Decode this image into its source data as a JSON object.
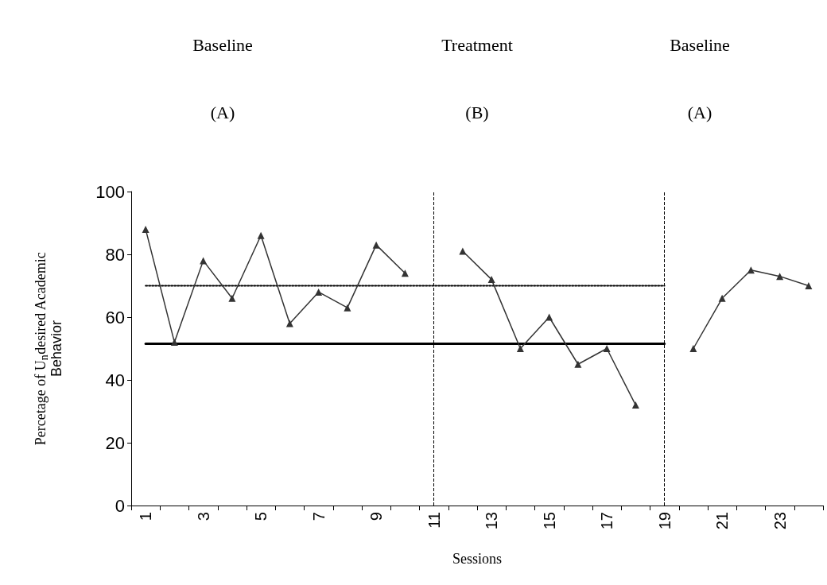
{
  "chart_data": {
    "type": "line",
    "xlabel": "Sessions",
    "ylabel": "Percetage of U$_{n}$desired Academic Behavior",
    "categories": [
      "1",
      null,
      "3",
      null,
      "5",
      null,
      "7",
      null,
      "9",
      null,
      "11",
      null,
      "13",
      null,
      "15",
      null,
      "17",
      null,
      "19",
      null,
      "21",
      null,
      "23",
      null
    ],
    "series": [
      {
        "color": "#333333",
        "marker": "triangle",
        "line_style": "solid",
        "values": [
          88,
          52,
          78,
          66,
          86,
          58,
          68,
          63,
          83,
          74,
          null,
          81,
          72,
          50,
          60,
          45,
          50,
          32,
          null,
          50,
          66,
          75,
          73,
          70
        ]
      },
      {
        "type": "line",
        "color": "#000000",
        "marker": "none",
        "line_style": "dotted",
        "values": [
          70,
          70,
          70,
          70,
          70,
          70,
          70,
          70,
          70,
          70,
          70,
          70,
          70,
          70,
          70,
          70,
          70,
          70,
          70,
          null,
          null,
          null,
          null,
          null
        ]
      },
      {
        "type": "line",
        "color": "#000000",
        "marker": "none",
        "line_style": "solid",
        "values": [
          51.5,
          51.5,
          51.5,
          51.5,
          51.5,
          51.5,
          51.5,
          51.5,
          51.5,
          51.5,
          51.5,
          51.5,
          51.5,
          51.5,
          51.5,
          51.5,
          51.5,
          51.5,
          51.5,
          null,
          null,
          null,
          null,
          null
        ]
      }
    ],
    "ylim": [
      0,
      100
    ],
    "yticks": [
      0,
      20,
      40,
      60,
      80,
      100
    ],
    "grid": false,
    "ref_lines": [
      {
        "axis": "x",
        "value": "11",
        "line_style": "dashed",
        "color": "#000000"
      },
      {
        "axis": "x",
        "value": "19",
        "line_style": "dashed",
        "color": "#000000"
      }
    ],
    "annotations": [
      "Baseline",
      "Treatment",
      "Baseline",
      "(A)",
      "(B)",
      "(A)"
    ]
  }
}
